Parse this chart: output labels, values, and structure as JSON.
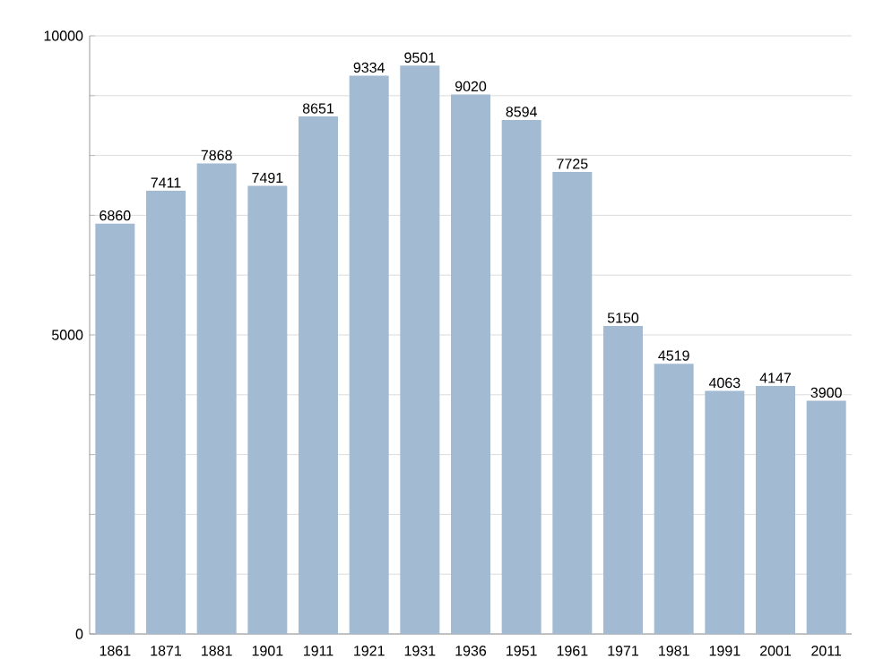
{
  "chart_data": {
    "type": "bar",
    "categories": [
      "1861",
      "1871",
      "1881",
      "1901",
      "1911",
      "1921",
      "1931",
      "1936",
      "1951",
      "1961",
      "1971",
      "1981",
      "1991",
      "2001",
      "2011"
    ],
    "values": [
      6860,
      7411,
      7868,
      7491,
      8651,
      9334,
      9501,
      9020,
      8594,
      7725,
      5150,
      4519,
      4063,
      4147,
      3900
    ],
    "color": "#a3bad3",
    "ylim": [
      0,
      10000
    ],
    "yticks": [
      0,
      {
        "value": 1000,
        "label": null
      },
      {
        "value": 2000,
        "label": null
      },
      {
        "value": 3000,
        "label": null
      },
      {
        "value": 4000,
        "label": null
      },
      5000,
      {
        "value": 6000,
        "label": null
      },
      {
        "value": 7000,
        "label": null
      },
      {
        "value": 8000,
        "label": null
      },
      {
        "value": 9000,
        "label": null
      },
      10000
    ],
    "grid": "y",
    "data_labels": true
  }
}
